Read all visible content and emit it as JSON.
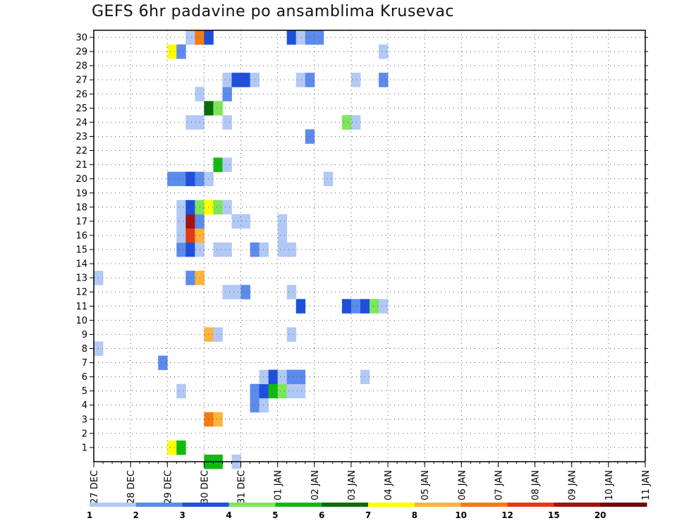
{
  "chart_data": {
    "type": "heatmap",
    "title": "GEFS 6hr padavine po ansamblima Krusevac",
    "xlabel": "",
    "ylabel": "",
    "x_tick_labels": [
      "27 DEC",
      "28 DEC",
      "29 DEC",
      "30 DEC",
      "31 DEC",
      "01 JAN",
      "02 JAN",
      "03 JAN",
      "04 JAN",
      "05 JAN",
      "06 JAN",
      "07 JAN",
      "08 JAN",
      "09 JAN",
      "10 JAN",
      "11 JAN"
    ],
    "y_tick_labels": [
      "1",
      "2",
      "3",
      "4",
      "5",
      "6",
      "7",
      "8",
      "9",
      "10",
      "11",
      "12",
      "13",
      "14",
      "15",
      "16",
      "17",
      "18",
      "19",
      "20",
      "21",
      "22",
      "23",
      "24",
      "25",
      "26",
      "27",
      "28",
      "29",
      "30"
    ],
    "x_unit": "6-hour steps from 27 DEC",
    "x_range_steps": [
      0,
      60
    ],
    "y_range_members": [
      0,
      30
    ],
    "grid": true,
    "colorbar": {
      "labels": [
        "1",
        "2",
        "3",
        "4",
        "5",
        "6",
        "7",
        "8",
        "10",
        "12",
        "15",
        "20"
      ],
      "colors": [
        "#b3c9f5",
        "#5b8bec",
        "#1f50dc",
        "#7ee65a",
        "#13b913",
        "#0b6b0b",
        "#ffff00",
        "#fcb43c",
        "#f77a13",
        "#e43a15",
        "#a31212",
        "#6d0a0a"
      ]
    },
    "cells": [
      [
        0,
        12,
        "#13b913"
      ],
      [
        0,
        13,
        "#13b913"
      ],
      [
        0,
        15,
        "#b3c9f5"
      ],
      [
        1,
        8,
        "#ffff00"
      ],
      [
        1,
        9,
        "#13b913"
      ],
      [
        3,
        12,
        "#f77a13"
      ],
      [
        3,
        13,
        "#fcb43c"
      ],
      [
        4,
        17,
        "#5b8bec"
      ],
      [
        4,
        18,
        "#b3c9f5"
      ],
      [
        5,
        9,
        "#b3c9f5"
      ],
      [
        5,
        17,
        "#5b8bec"
      ],
      [
        5,
        18,
        "#1f50dc"
      ],
      [
        5,
        19,
        "#13b913"
      ],
      [
        5,
        20,
        "#7ee65a"
      ],
      [
        5,
        21,
        "#b3c9f5"
      ],
      [
        5,
        22,
        "#b3c9f5"
      ],
      [
        6,
        18,
        "#b3c9f5"
      ],
      [
        6,
        19,
        "#1f50dc"
      ],
      [
        6,
        20,
        "#b3c9f5"
      ],
      [
        6,
        21,
        "#5b8bec"
      ],
      [
        6,
        22,
        "#5b8bec"
      ],
      [
        6,
        29,
        "#b3c9f5"
      ],
      [
        7,
        7,
        "#5b8bec"
      ],
      [
        8,
        0,
        "#b3c9f5"
      ],
      [
        9,
        12,
        "#fcb43c"
      ],
      [
        9,
        13,
        "#b3c9f5"
      ],
      [
        9,
        21,
        "#b3c9f5"
      ],
      [
        11,
        22,
        "#1f50dc"
      ],
      [
        11,
        27,
        "#1f50dc"
      ],
      [
        11,
        28,
        "#5b8bec"
      ],
      [
        11,
        29,
        "#1f50dc"
      ],
      [
        11,
        30,
        "#7ee65a"
      ],
      [
        11,
        31,
        "#b3c9f5"
      ],
      [
        12,
        14,
        "#b3c9f5"
      ],
      [
        12,
        15,
        "#b3c9f5"
      ],
      [
        12,
        16,
        "#5b8bec"
      ],
      [
        12,
        21,
        "#b3c9f5"
      ],
      [
        13,
        0,
        "#b3c9f5"
      ],
      [
        13,
        10,
        "#5b8bec"
      ],
      [
        13,
        11,
        "#fcb43c"
      ],
      [
        15,
        9,
        "#5b8bec"
      ],
      [
        15,
        10,
        "#1f50dc"
      ],
      [
        15,
        11,
        "#b3c9f5"
      ],
      [
        15,
        13,
        "#b3c9f5"
      ],
      [
        15,
        14,
        "#b3c9f5"
      ],
      [
        15,
        17,
        "#5b8bec"
      ],
      [
        15,
        18,
        "#b3c9f5"
      ],
      [
        15,
        20,
        "#b3c9f5"
      ],
      [
        15,
        21,
        "#b3c9f5"
      ],
      [
        16,
        9,
        "#b3c9f5"
      ],
      [
        16,
        10,
        "#e43a15"
      ],
      [
        16,
        11,
        "#fcb43c"
      ],
      [
        16,
        20,
        "#b3c9f5"
      ],
      [
        17,
        9,
        "#b3c9f5"
      ],
      [
        17,
        10,
        "#a31212"
      ],
      [
        17,
        11,
        "#5b8bec"
      ],
      [
        17,
        15,
        "#b3c9f5"
      ],
      [
        17,
        16,
        "#b3c9f5"
      ],
      [
        17,
        20,
        "#b3c9f5"
      ],
      [
        18,
        9,
        "#b3c9f5"
      ],
      [
        18,
        10,
        "#1f50dc"
      ],
      [
        18,
        11,
        "#7ee65a"
      ],
      [
        18,
        12,
        "#ffff00"
      ],
      [
        18,
        13,
        "#7ee65a"
      ],
      [
        18,
        14,
        "#b3c9f5"
      ],
      [
        20,
        8,
        "#5b8bec"
      ],
      [
        20,
        9,
        "#5b8bec"
      ],
      [
        20,
        10,
        "#1f50dc"
      ],
      [
        20,
        11,
        "#5b8bec"
      ],
      [
        20,
        12,
        "#b3c9f5"
      ],
      [
        20,
        25,
        "#b3c9f5"
      ],
      [
        21,
        13,
        "#13b913"
      ],
      [
        21,
        14,
        "#b3c9f5"
      ],
      [
        23,
        23,
        "#5b8bec"
      ],
      [
        24,
        10,
        "#b3c9f5"
      ],
      [
        24,
        11,
        "#b3c9f5"
      ],
      [
        24,
        14,
        "#b3c9f5"
      ],
      [
        24,
        27,
        "#7ee65a"
      ],
      [
        24,
        28,
        "#b3c9f5"
      ],
      [
        25,
        12,
        "#0b6b0b"
      ],
      [
        25,
        13,
        "#7ee65a"
      ],
      [
        26,
        11,
        "#b3c9f5"
      ],
      [
        26,
        14,
        "#5b8bec"
      ],
      [
        27,
        14,
        "#b3c9f5"
      ],
      [
        27,
        15,
        "#1f50dc"
      ],
      [
        27,
        16,
        "#1f50dc"
      ],
      [
        27,
        17,
        "#b3c9f5"
      ],
      [
        27,
        22,
        "#b3c9f5"
      ],
      [
        27,
        23,
        "#5b8bec"
      ],
      [
        27,
        28,
        "#b3c9f5"
      ],
      [
        27,
        31,
        "#5b8bec"
      ],
      [
        29,
        8,
        "#ffff00"
      ],
      [
        29,
        9,
        "#5b8bec"
      ],
      [
        29,
        31,
        "#b3c9f5"
      ],
      [
        30,
        10,
        "#b3c9f5"
      ],
      [
        30,
        11,
        "#f77a13"
      ],
      [
        30,
        12,
        "#1f50dc"
      ],
      [
        30,
        21,
        "#1f50dc"
      ],
      [
        30,
        22,
        "#b3c9f5"
      ],
      [
        30,
        23,
        "#5b8bec"
      ],
      [
        30,
        24,
        "#5b8bec"
      ]
    ]
  }
}
